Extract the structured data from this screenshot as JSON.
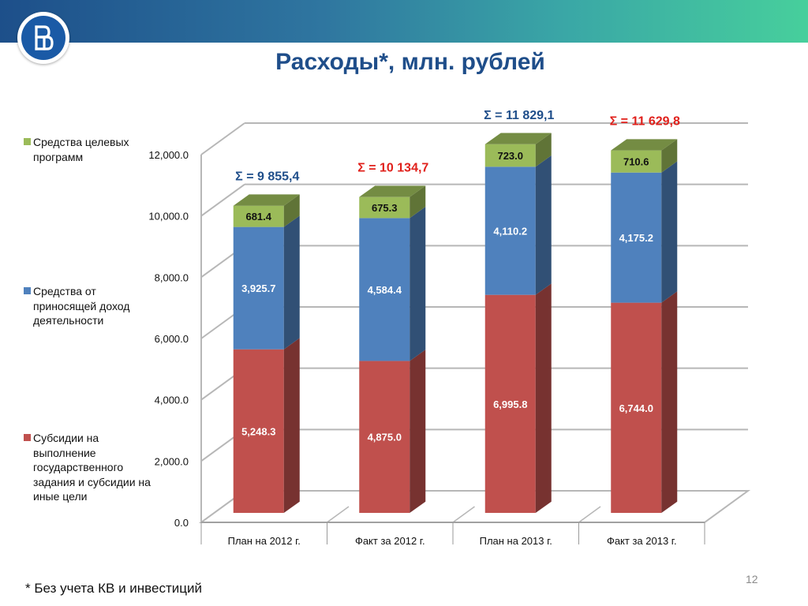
{
  "title": "Расходы*, млн. рублей",
  "footnote": "* Без учета КВ и инвестиций",
  "page_number": "12",
  "colors": {
    "green": "#9bbb59",
    "blue": "#4f81bd",
    "red": "#c0504d",
    "sum_blue": "#1f4e8a",
    "sum_red": "#e0201b"
  },
  "chart_data": {
    "type": "bar",
    "stacked": true,
    "categories": [
      "План на  2012 г.",
      "Факт за  2012 г.",
      "План на  2013 г.",
      "Факт за  2013 г."
    ],
    "series": [
      {
        "name": "Субсидии на выполнение государственного задания и субсидии на иные цели",
        "color": "#c0504d",
        "values": [
          5248.3,
          4875.0,
          6995.8,
          6744.0
        ],
        "labels": [
          "5,248.3",
          "4,875.0",
          "6,995.8",
          "6,744.0"
        ]
      },
      {
        "name": "Средства от приносящей доход деятельности",
        "color": "#4f81bd",
        "values": [
          3925.7,
          4584.4,
          4110.2,
          4175.2
        ],
        "labels": [
          "3,925.7",
          "4,584.4",
          "4,110.2",
          "4,175.2"
        ]
      },
      {
        "name": "Средства целевых программ",
        "color": "#9bbb59",
        "values": [
          681.4,
          675.3,
          723.0,
          710.6
        ],
        "labels": [
          "681.4",
          "675.3",
          "723.0",
          "710.6"
        ]
      }
    ],
    "totals": [
      "Σ = 9 855,4",
      "Σ = 10 134,7",
      "Σ = 11 829,1",
      "Σ = 11 629,8"
    ],
    "total_colors": [
      "#1f4e8a",
      "#e0201b",
      "#1f4e8a",
      "#e0201b"
    ],
    "ylim": [
      0,
      12000
    ],
    "yticks": [
      0,
      2000,
      4000,
      6000,
      8000,
      10000,
      12000
    ],
    "ytick_labels": [
      "0.0",
      "2,000.0",
      "4,000.0",
      "6,000.0",
      "8,000.0",
      "10,000.0",
      "12,000.0"
    ],
    "grid": true,
    "legend_position": "left"
  }
}
